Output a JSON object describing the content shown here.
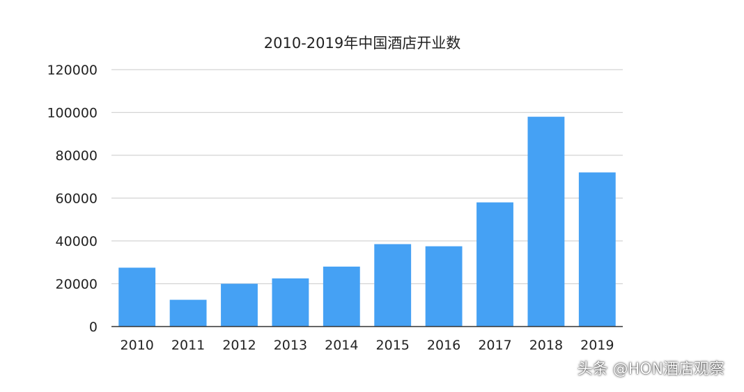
{
  "chart_data": {
    "type": "bar",
    "title": "2010-2019年中国酒店开业数",
    "categories": [
      "2010",
      "2011",
      "2012",
      "2013",
      "2014",
      "2015",
      "2016",
      "2017",
      "2018",
      "2019"
    ],
    "values": [
      27500,
      12500,
      20000,
      22500,
      28000,
      38500,
      37500,
      58000,
      98000,
      72000
    ],
    "ylim": [
      0,
      120000
    ],
    "yticks": [
      0,
      20000,
      40000,
      60000,
      80000,
      100000,
      120000
    ],
    "ytick_labels": [
      "0",
      "20000",
      "40000",
      "60000",
      "80000",
      "100000",
      "120000"
    ],
    "xlabel": "",
    "ylabel": "",
    "grid": true,
    "bar_color": "#45a1f4",
    "grid_color": "#d3d3d3",
    "axis_color": "#333333"
  },
  "watermark": "头条 @HON酒店观察"
}
